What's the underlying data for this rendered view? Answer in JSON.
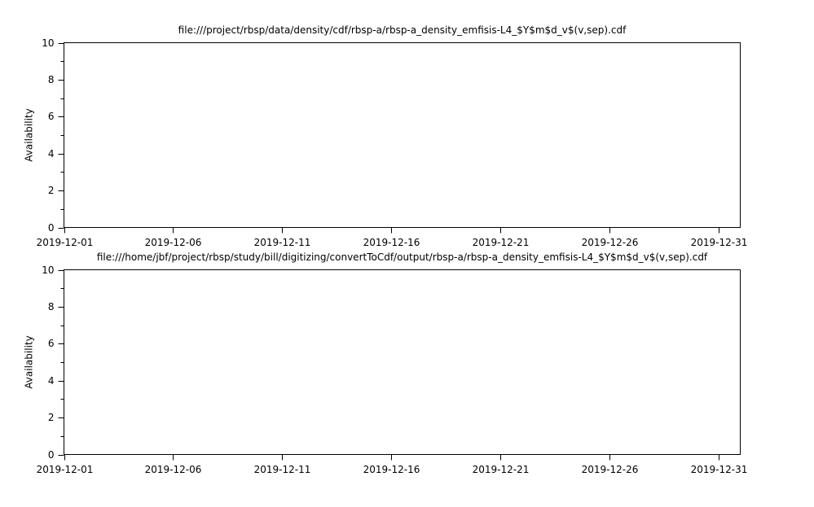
{
  "chart_data": [
    {
      "type": "line",
      "title": "file:///project/rbsp/data/density/cdf/rbsp-a/rbsp-a_density_emfisis-L4_$Y$m$d_v$(v,sep).cdf",
      "ylabel": "Availability",
      "series": [],
      "xlim": [
        "2019-12-01",
        "2020-01-01"
      ],
      "xticks": [
        "2019-12-01",
        "2019-12-06",
        "2019-12-11",
        "2019-12-16",
        "2019-12-21",
        "2019-12-26",
        "2019-12-31"
      ],
      "ylim": [
        0,
        10
      ],
      "yticks": [
        0,
        2,
        4,
        6,
        8,
        10
      ],
      "yminorticks": [
        1,
        3,
        5,
        7,
        9
      ]
    },
    {
      "type": "line",
      "title": "file:///home/jbf/project/rbsp/study/bill/digitizing/convertToCdf/output/rbsp-a/rbsp-a_density_emfisis-L4_$Y$m$d_v$(v,sep).cdf",
      "ylabel": "Availability",
      "series": [],
      "xlim": [
        "2019-12-01",
        "2020-01-01"
      ],
      "xticks": [
        "2019-12-01",
        "2019-12-06",
        "2019-12-11",
        "2019-12-16",
        "2019-12-21",
        "2019-12-26",
        "2019-12-31"
      ],
      "ylim": [
        0,
        10
      ],
      "yticks": [
        0,
        2,
        4,
        6,
        8,
        10
      ],
      "yminorticks": [
        1,
        3,
        5,
        7,
        9
      ]
    }
  ]
}
